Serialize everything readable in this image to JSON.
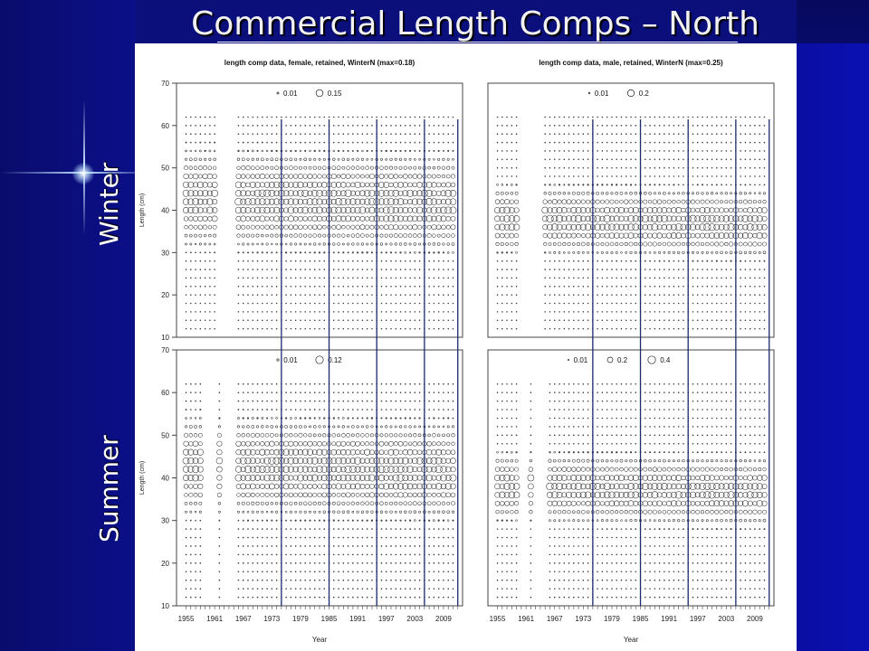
{
  "slide": {
    "title": "Commercial Length Comps – North",
    "row_labels": [
      "Winter",
      "Summer"
    ]
  },
  "colors": {
    "background": "#0b0f88",
    "title": "#f2f2f2",
    "panel_background": "#ffffff",
    "marks": "#333333",
    "year_lines": "#1a2a6e"
  },
  "chart_data": [
    {
      "type": "scatter",
      "title": "length comp data, female, retained, WinterN (max=0.18)",
      "xlabel": "",
      "ylabel": "Length (cm)",
      "ylim": [
        10,
        70
      ],
      "yticks": [
        10,
        20,
        30,
        40,
        50,
        60,
        70
      ],
      "xlim": [
        1953,
        2013
      ],
      "legend": {
        "position": "top-center",
        "entries": [
          {
            "label": "0.01",
            "value": 0.01
          },
          {
            "label": "0.15",
            "value": 0.15
          }
        ]
      },
      "max": 0.18,
      "year_groups": [
        [
          1955,
          1961
        ],
        [
          1966,
          2011
        ]
      ],
      "length_range": [
        12,
        62
      ],
      "mode_length": 43,
      "mode_spread": 5,
      "shift": -1.5
    },
    {
      "type": "scatter",
      "title": "length comp data, male, retained, WinterN (max=0.25)",
      "xlabel": "",
      "ylabel": "",
      "ylim": [
        10,
        70
      ],
      "yticks": [],
      "xlim": [
        1953,
        2013
      ],
      "legend": {
        "position": "top-center",
        "entries": [
          {
            "label": "0.01",
            "value": 0.01
          },
          {
            "label": "0.2",
            "value": 0.2
          }
        ]
      },
      "max": 0.25,
      "year_groups": [
        [
          1955,
          1959
        ],
        [
          1965,
          2011
        ]
      ],
      "length_range": [
        12,
        62
      ],
      "mode_length": 38,
      "mode_spread": 3.5,
      "shift": -1.3
    },
    {
      "type": "scatter",
      "title": "",
      "xlabel": "Year",
      "ylabel": "Length (cm)",
      "ylim": [
        10,
        70
      ],
      "yticks": [
        10,
        20,
        30,
        40,
        50,
        60,
        70
      ],
      "xlim": [
        1953,
        2013
      ],
      "xticks": [
        1955,
        1961,
        1967,
        1973,
        1979,
        1985,
        1991,
        1997,
        2003,
        2009
      ],
      "legend": {
        "position": "top-center",
        "entries": [
          {
            "label": "0.01",
            "value": 0.01
          },
          {
            "label": "0.12",
            "value": 0.12
          }
        ]
      },
      "max": 0.12,
      "year_groups": [
        [
          1955,
          1958
        ],
        [
          1962,
          1962
        ],
        [
          1966,
          2011
        ]
      ],
      "length_range": [
        12,
        62
      ],
      "mode_length": 43,
      "mode_spread": 5,
      "shift": -1.5
    },
    {
      "type": "scatter",
      "title": "",
      "xlabel": "Year",
      "ylabel": "",
      "ylim": [
        10,
        70
      ],
      "yticks": [],
      "xlim": [
        1953,
        2013
      ],
      "xticks": [
        1955,
        1961,
        1967,
        1973,
        1979,
        1985,
        1991,
        1997,
        2003,
        2009
      ],
      "legend": {
        "position": "top-center",
        "entries": [
          {
            "label": "0.01",
            "value": 0.01
          },
          {
            "label": "0.2",
            "value": 0.2
          },
          {
            "label": "0.4",
            "value": 0.4
          }
        ]
      },
      "max": 0.4,
      "year_groups": [
        [
          1955,
          1959
        ],
        [
          1962,
          1962
        ],
        [
          1966,
          2011
        ]
      ],
      "length_range": [
        12,
        62
      ],
      "mode_length": 38,
      "mode_spread": 3.5,
      "shift": -1.3
    }
  ],
  "vertical_lines_years": [
    1975,
    1985,
    1995,
    2005,
    2012
  ]
}
